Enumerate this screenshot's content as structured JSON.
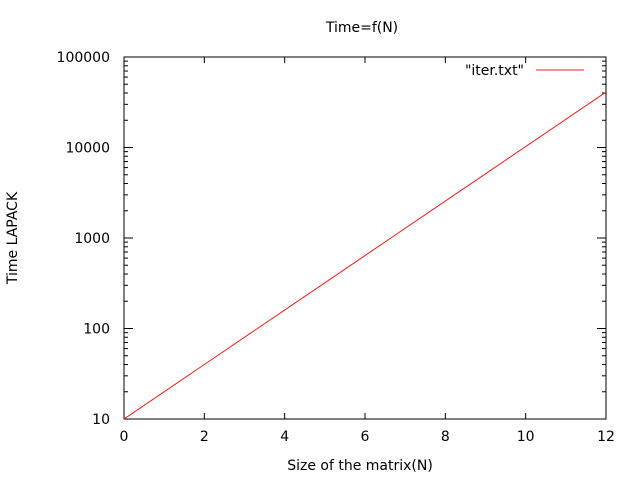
{
  "chart_data": {
    "type": "line",
    "title": "Time=f(N)",
    "xlabel": "Size of the matrix(N)",
    "ylabel": "Time LAPACK",
    "xlim": [
      0,
      12
    ],
    "ylim": [
      10,
      100000
    ],
    "yscale": "log",
    "grid": false,
    "legend_position": "top-right",
    "xticks": [
      0,
      2,
      4,
      6,
      8,
      10,
      12
    ],
    "xtick_labels": [
      "0",
      "2",
      "4",
      "6",
      "8",
      "10",
      "12"
    ],
    "yticks": [
      10,
      100,
      1000,
      10000,
      100000
    ],
    "ytick_labels": [
      "10",
      "100",
      "1000",
      "10000",
      "100000"
    ],
    "series": [
      {
        "name": "\"iter.txt\"",
        "color": "#e8201c",
        "x": [
          0,
          2,
          4,
          6,
          8,
          10,
          12
        ],
        "y": [
          10,
          40,
          160,
          640,
          2560,
          10240,
          40960
        ]
      }
    ]
  }
}
